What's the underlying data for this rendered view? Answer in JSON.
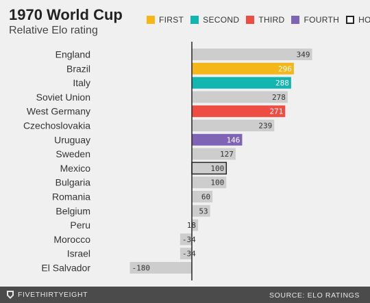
{
  "header": {
    "title": "1970 World Cup",
    "subtitle": "Relative Elo rating"
  },
  "legend": [
    {
      "label": "FIRST",
      "color": "#f5b619"
    },
    {
      "label": "SECOND",
      "color": "#12b5b0"
    },
    {
      "label": "THIRD",
      "color": "#ee4d43"
    },
    {
      "label": "FOURTH",
      "color": "#7f64b5"
    },
    {
      "label": "HOST",
      "color": "none"
    }
  ],
  "footer": {
    "brand": "FIVETHIRTYEIGHT",
    "source": "SOURCE: ELO RATINGS"
  },
  "chart_data": {
    "type": "bar",
    "orientation": "horizontal",
    "title": "1970 World Cup",
    "subtitle": "Relative Elo rating",
    "categories": [
      "England",
      "Brazil",
      "Italy",
      "Soviet Union",
      "West Germany",
      "Czechoslovakia",
      "Uruguay",
      "Sweden",
      "Mexico",
      "Bulgaria",
      "Romania",
      "Belgium",
      "Peru",
      "Morocco",
      "Israel",
      "El Salvador"
    ],
    "values": [
      349,
      296,
      288,
      278,
      271,
      239,
      146,
      127,
      100,
      100,
      60,
      53,
      18,
      -34,
      -34,
      -180
    ],
    "finish": [
      "",
      "FIRST",
      "SECOND",
      "",
      "THIRD",
      "",
      "FOURTH",
      "",
      "HOST",
      "",
      "",
      "",
      "",
      "",
      "",
      ""
    ],
    "colors": {
      "default": "#cdcdcd",
      "FIRST": "#f5b619",
      "SECOND": "#12b5b0",
      "THIRD": "#ee4d43",
      "FOURTH": "#7f64b5",
      "HOST": "#cdcdcd",
      "host_outline": "#222222",
      "axis": "#222222"
    },
    "xlim": [
      -200,
      380
    ]
  }
}
